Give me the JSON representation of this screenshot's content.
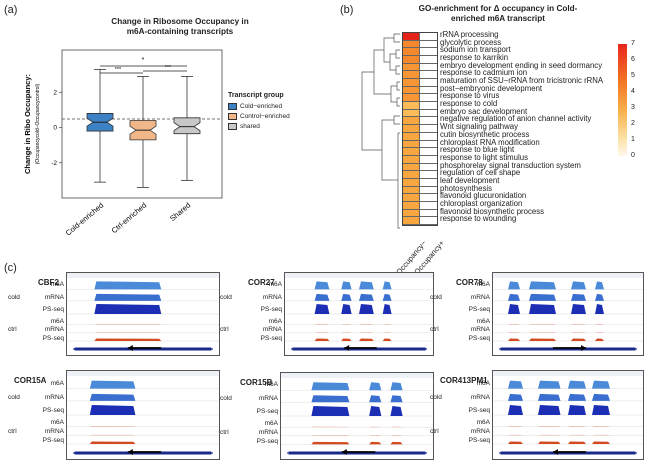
{
  "panel_a": {
    "letter": "(a)",
    "title_line1": "Change in Ribosome Occupancy in",
    "title_line2": "m6A-containing transcripts",
    "ylabel": "Change in Ribo Occupancy:",
    "ylabel_sub": "(Occupancycold−Occupancycontrol)",
    "sig1": "*",
    "sig2": "***",
    "sig3": "***",
    "legend_title": "Transcript group",
    "legend_items": [
      {
        "label": "Cold−enriched",
        "color": "#3d82c4"
      },
      {
        "label": "Control−enriched",
        "color": "#f2b788"
      },
      {
        "label": "shared",
        "color": "#c8c8c8"
      }
    ]
  },
  "chart_data": {
    "type": "box",
    "categories": [
      "Cold-enriched",
      "Ctrl-enriched",
      "Shared"
    ],
    "yticks": [
      2,
      0,
      -2
    ],
    "ylim": [
      -4,
      4.4
    ],
    "boxes": [
      {
        "name": "Cold-enriched",
        "whisker_low": -3.1,
        "q1": -0.2,
        "median": 0.3,
        "q3": 0.8,
        "whisker_high": 3.3,
        "color": "#3d82c4"
      },
      {
        "name": "Ctrl-enriched",
        "whisker_low": -3.4,
        "q1": -0.7,
        "median": -0.15,
        "q3": 0.4,
        "whisker_high": 2.9,
        "color": "#f2b788"
      },
      {
        "name": "Shared",
        "whisker_low": -3.0,
        "q1": -0.35,
        "median": 0.05,
        "q3": 0.55,
        "whisker_high": 2.9,
        "color": "#c8c8c8"
      }
    ]
  },
  "panel_b": {
    "letter": "(b)",
    "title_line1": "GO-enrichment for Δ occupancy in Cold-",
    "title_line2": "enriched m6A transcript",
    "colorbar_ticks": [
      "7",
      "6",
      "5",
      "4",
      "3",
      "2",
      "1",
      "0"
    ],
    "col_labels": [
      "Occupancy−",
      "Occupancy+"
    ],
    "terms": [
      {
        "label": "rRNA processing",
        "v": 7
      },
      {
        "label": "glycolytic process",
        "v": 4.6
      },
      {
        "label": "sodium ion transport",
        "v": 4.6
      },
      {
        "label": "response to karrikin",
        "v": 4.6
      },
      {
        "label": "embryo development ending in seed dormancy",
        "v": 4.2
      },
      {
        "label": "response to cadmium ion",
        "v": 4.2
      },
      {
        "label": "maturation of SSU−rRNA from tricistronic rRNA",
        "v": 4.2
      },
      {
        "label": "post−embryonic development",
        "v": 4.2
      },
      {
        "label": "response to virus",
        "v": 4.2
      },
      {
        "label": "response to cold",
        "v": 3.2
      },
      {
        "label": "embryo sac development",
        "v": 3.2
      },
      {
        "label": "negative regulation of anion channel activity",
        "v": 3.8
      },
      {
        "label": "Wnt signaling pathway",
        "v": 3.8
      },
      {
        "label": "cutin biosynthetic process",
        "v": 3.8
      },
      {
        "label": "chloroplast RNA modification",
        "v": 3.8
      },
      {
        "label": "response to blue light",
        "v": 3.8
      },
      {
        "label": "response to light stimulus",
        "v": 3.8
      },
      {
        "label": "phosphorelay signal transduction system",
        "v": 3.8
      },
      {
        "label": "regulation of cell shape",
        "v": 3.8
      },
      {
        "label": "leaf development",
        "v": 3.8
      },
      {
        "label": "photosynthesis",
        "v": 3.8
      },
      {
        "label": "flavonoid glucuronidation",
        "v": 3.8
      },
      {
        "label": "chloroplast organization",
        "v": 3.8
      },
      {
        "label": "flavonoid biosynthetic process",
        "v": 3.8
      },
      {
        "label": "response to wounding",
        "v": 3.8
      }
    ]
  },
  "panel_c": {
    "letter": "(c)",
    "row_labels": {
      "m6a": "m6A",
      "mrna": "mRNA",
      "psseq": "PS-seq"
    },
    "cond_cold": "cold",
    "cond_ctrl": "ctrl",
    "genes": [
      {
        "name": "CBF2",
        "direction": "left"
      },
      {
        "name": "COR27",
        "direction": "left"
      },
      {
        "name": "COR78",
        "direction": "right"
      },
      {
        "name": "COR15A",
        "direction": "left"
      },
      {
        "name": "COR15B",
        "direction": "left"
      },
      {
        "name": "COR413PM1",
        "direction": "left"
      }
    ]
  }
}
